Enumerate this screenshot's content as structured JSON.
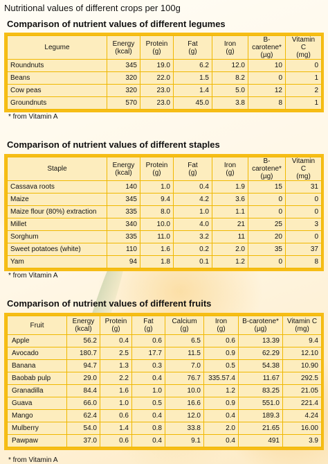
{
  "page_title": "Nutritional values of different crops per 100g",
  "legumes": {
    "title": "Comparison of nutrient values of different legumes",
    "headers": [
      "Legume",
      "Energy\n(kcal)",
      "Protein\n(g)",
      "Fat\n(g)",
      "Iron\n(g)",
      "B-carotene*\n(µg)",
      "Vitamin C\n(mg)"
    ],
    "rows": [
      [
        "Roundnuts",
        "345",
        "19.0",
        "6.2",
        "12.0",
        "10",
        "0"
      ],
      [
        "Beans",
        "320",
        "22.0",
        "1.5",
        "8.2",
        "0",
        "1"
      ],
      [
        "Cow peas",
        "320",
        "23.0",
        "1.4",
        "5.0",
        "12",
        "2"
      ],
      [
        "Groundnuts",
        "570",
        "23.0",
        "45.0",
        "3.8",
        "8",
        "1"
      ]
    ],
    "footnote": "* from Vitamin A"
  },
  "staples": {
    "title": "Comparison of nutrient values of different staples",
    "headers": [
      "Staple",
      "Energy\n(kcal)",
      "Protein\n(g)",
      "Fat\n(g)",
      "Iron\n(g)",
      "B-carotene*\n(µg)",
      "Vitamin C\n(mg)"
    ],
    "rows": [
      [
        "Cassava roots",
        "140",
        "1.0",
        "0.4",
        "1.9",
        "15",
        "31"
      ],
      [
        "Maize",
        "345",
        "9.4",
        "4.2",
        "3.6",
        "0",
        "0"
      ],
      [
        "Maize flour (80%) extraction",
        "335",
        "8.0",
        "1.0",
        "1.1",
        "0",
        "0"
      ],
      [
        "Millet",
        "340",
        "10.0",
        "4.0",
        "21",
        "25",
        "3"
      ],
      [
        "Sorghum",
        "335",
        "11.0",
        "3.2",
        "11",
        "20",
        "0"
      ],
      [
        "Sweet potatoes (white)",
        "110",
        "1.6",
        "0.2",
        "2.0",
        "35",
        "37"
      ],
      [
        "Yam",
        "94",
        "1.8",
        "0.1",
        "1.2",
        "0",
        "8"
      ]
    ],
    "footnote": "* from Vitamin A"
  },
  "fruits": {
    "title": "Comparison of nutrient values of different fruits",
    "headers": [
      "Fruit",
      "Energy\n(kcal)",
      "Protein\n(g)",
      "Fat\n(g)",
      "Calcium\n(g)",
      "Iron\n(g)",
      "B-carotene*\n(µg)",
      "Vitamin C\n(mg)"
    ],
    "rows": [
      [
        "Apple",
        "56.2",
        "0.4",
        "0.6",
        "6.5",
        "0.6",
        "13.39",
        "9.4"
      ],
      [
        "Avocado",
        "180.7",
        "2.5",
        "17.7",
        "11.5",
        "0.9",
        "62.29",
        "12.10"
      ],
      [
        "Banana",
        "94.7",
        "1.3",
        "0.3",
        "7.0",
        "0.5",
        "54.38",
        "10.90"
      ],
      [
        "Baobab pulp",
        "29.0",
        "2.2",
        "0.4",
        "76.7",
        "335.57.4",
        "11.67",
        "292.5"
      ],
      [
        "Granadilla",
        "84.4",
        "1.6",
        "1.0",
        "10.0",
        "1.2",
        "83.25",
        "21.05"
      ],
      [
        "Guava",
        "66.0",
        "1.0",
        "0.5",
        "16.6",
        "0.9",
        "551.0",
        "221.4"
      ],
      [
        "Mango",
        "62.4",
        "0.6",
        "0.4",
        "12.0",
        "0.4",
        "189.3",
        "4.24"
      ],
      [
        "Mulberry",
        "54.0",
        "1.4",
        "0.8",
        "33.8",
        "2.0",
        "21.65",
        "16.00"
      ],
      [
        "Pawpaw",
        "37.0",
        "0.6",
        "0.4",
        "9.1",
        "0.4",
        "491",
        "3.9"
      ]
    ],
    "footnote": "* from Vitamin A"
  }
}
